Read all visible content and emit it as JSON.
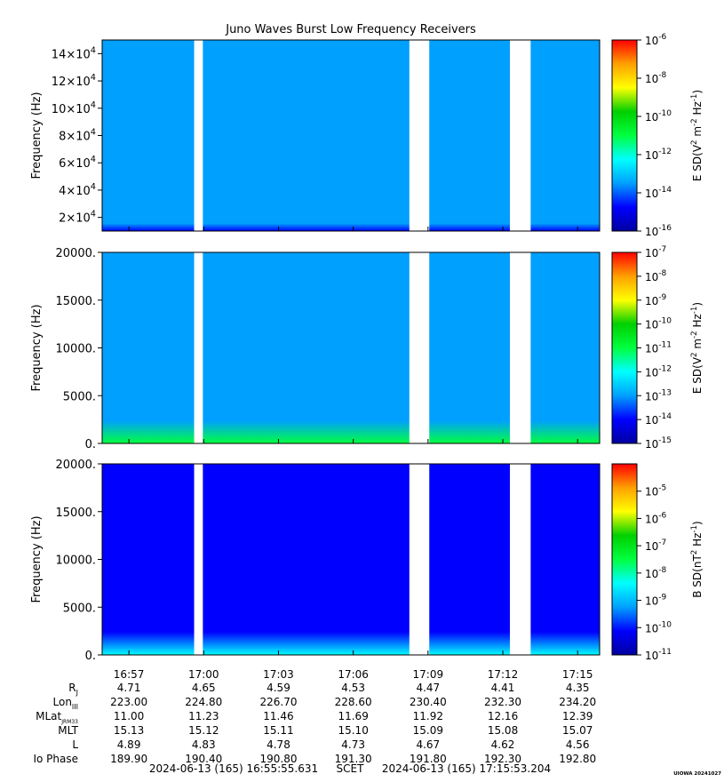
{
  "chart_data": {
    "type": "heatmap",
    "title": "Juno Waves Burst Low Frequency Receivers",
    "time_axis": {
      "tick_labels": [
        "16:57",
        "17:00",
        "17:03",
        "17:06",
        "17:09",
        "17:12",
        "17:15"
      ],
      "start": "2024-06-13 (165) 16:55:55.631",
      "end": "2024-06-13 (165) 17:15:53.204",
      "label": "SCET",
      "data_gaps": [
        [
          "16:59:37",
          "16:59:58"
        ],
        [
          "17:08:15",
          "17:09:03"
        ],
        [
          "17:12:17",
          "17:13:07"
        ]
      ]
    },
    "panels": [
      {
        "ylabel": "Frequency (Hz)",
        "yticks": [
          "2x10^4",
          "4x10^4",
          "6x10^4",
          "8x10^4",
          "10x10^4",
          "12x10^4",
          "14x10^4"
        ],
        "ytick_values": [
          20000,
          40000,
          60000,
          80000,
          100000,
          120000,
          140000
        ],
        "ylim": [
          10000,
          150000
        ],
        "colorbar_label": "E SD(V^2 m^-2 Hz^-1)",
        "colorbar_ticks": [
          "10^-16",
          "10^-14",
          "10^-12",
          "10^-10",
          "10^-8",
          "10^-6"
        ],
        "colorbar_range": [
          -16,
          -6
        ],
        "background_level": -13.6,
        "low_band_level": -15.2
      },
      {
        "ylabel": "Frequency (Hz)",
        "yticks": [
          "0.",
          "5000.",
          "10000.",
          "15000.",
          "20000."
        ],
        "ytick_values": [
          0,
          5000,
          10000,
          15000,
          20000
        ],
        "ylim": [
          0,
          20000
        ],
        "colorbar_label": "E SD(V^2 m^-2 Hz^-1)",
        "colorbar_ticks": [
          "10^-15",
          "10^-14",
          "10^-13",
          "10^-12",
          "10^-11",
          "10^-10",
          "10^-9",
          "10^-8",
          "10^-7"
        ],
        "colorbar_range": [
          -15,
          -7
        ],
        "background_level": -12.8,
        "low_band_level": -11.3
      },
      {
        "ylabel": "Frequency (Hz)",
        "yticks": [
          "0.",
          "5000.",
          "10000.",
          "15000.",
          "20000."
        ],
        "ytick_values": [
          0,
          5000,
          10000,
          15000,
          20000
        ],
        "ylim": [
          0,
          20000
        ],
        "colorbar_label": "B SD(nT^2 Hz^-1)",
        "colorbar_ticks": [
          "10^-11",
          "10^-10",
          "10^-9",
          "10^-8",
          "10^-7",
          "10^-6",
          "10^-5"
        ],
        "colorbar_range": [
          -11,
          -4
        ],
        "background_level": -10.4,
        "low_band_level": -8.0
      }
    ],
    "ephemeris": {
      "rows": [
        {
          "label": "R",
          "sub": "J",
          "values": [
            "4.71",
            "4.65",
            "4.59",
            "4.53",
            "4.47",
            "4.41",
            "4.35"
          ]
        },
        {
          "label": "Lon",
          "sub": "III",
          "values": [
            "223.00",
            "224.80",
            "226.70",
            "228.60",
            "230.40",
            "232.30",
            "234.20"
          ]
        },
        {
          "label": "MLat",
          "sub": "JRM33",
          "values": [
            "11.00",
            "11.23",
            "11.46",
            "11.69",
            "11.92",
            "12.16",
            "12.39"
          ]
        },
        {
          "label": "MLT",
          "sub": "",
          "values": [
            "15.13",
            "15.12",
            "15.11",
            "15.10",
            "15.09",
            "15.08",
            "15.07"
          ]
        },
        {
          "label": "L",
          "sub": "",
          "values": [
            "4.89",
            "4.83",
            "4.78",
            "4.73",
            "4.67",
            "4.62",
            "4.56"
          ]
        },
        {
          "label": "Io Phase",
          "sub": "",
          "values": [
            "189.90",
            "190.40",
            "190.80",
            "191.30",
            "191.80",
            "192.30",
            "192.80"
          ]
        }
      ]
    }
  },
  "credit": "UIOWA 20241027",
  "colors": {
    "background": "#ffffff",
    "gap": "#ffffff",
    "colormap": [
      "#0000a0",
      "#0000ff",
      "#00a0ff",
      "#00ffff",
      "#00ff40",
      "#00d000",
      "#ffff00",
      "#ffa000",
      "#ff0000"
    ]
  }
}
